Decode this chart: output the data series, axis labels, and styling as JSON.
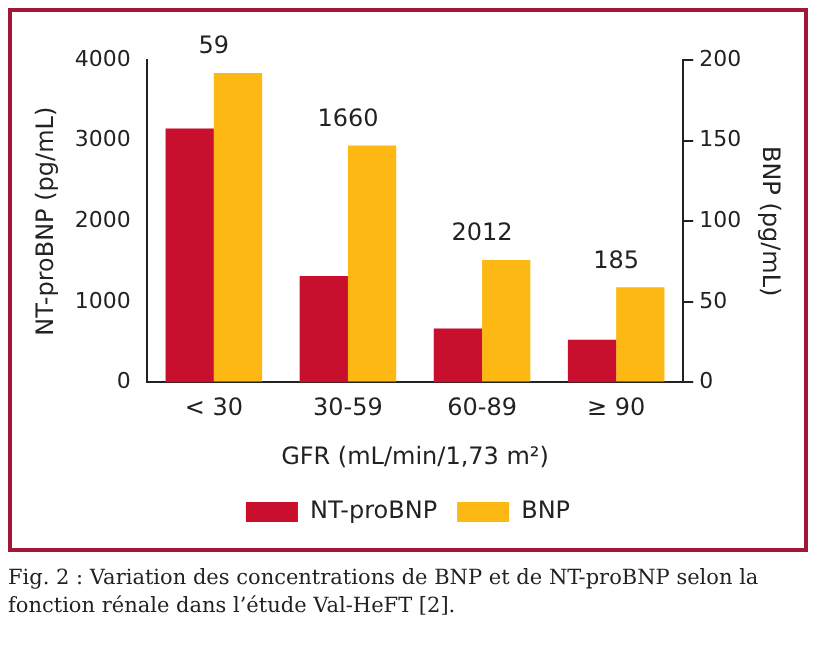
{
  "chart_data": {
    "type": "bar",
    "categories": [
      "< 30",
      "30-59",
      "60-89",
      "≥ 90"
    ],
    "series": [
      {
        "name": "NT-proBNP",
        "color": "#c8102e",
        "values": [
          3150,
          1320,
          670,
          530
        ]
      },
      {
        "name": "BNP",
        "color": "#fdb813",
        "values": [
          192,
          147,
          76,
          59
        ],
        "axis": "y2"
      }
    ],
    "ylabel": "NT-proBNP (pg/mL)",
    "y2label": "BNP (pg/mL)",
    "xlabel": "GFR (mL/min/1,73 m²)",
    "ylim": [
      0,
      4000
    ],
    "yticks": [
      0,
      1000,
      2000,
      3000,
      4000
    ],
    "y2lim": [
      0,
      200
    ],
    "y2ticks": [
      0,
      50,
      100,
      150,
      200
    ],
    "legend": "bottom",
    "grid": false,
    "annotations": [
      "59",
      "1660",
      "2012",
      "185",
      "Fig. 2 : Variation des concentrations de BNP et de NT-proBNP selon la fonction rénale dans l’étude Val-HeFT [2]."
    ]
  }
}
